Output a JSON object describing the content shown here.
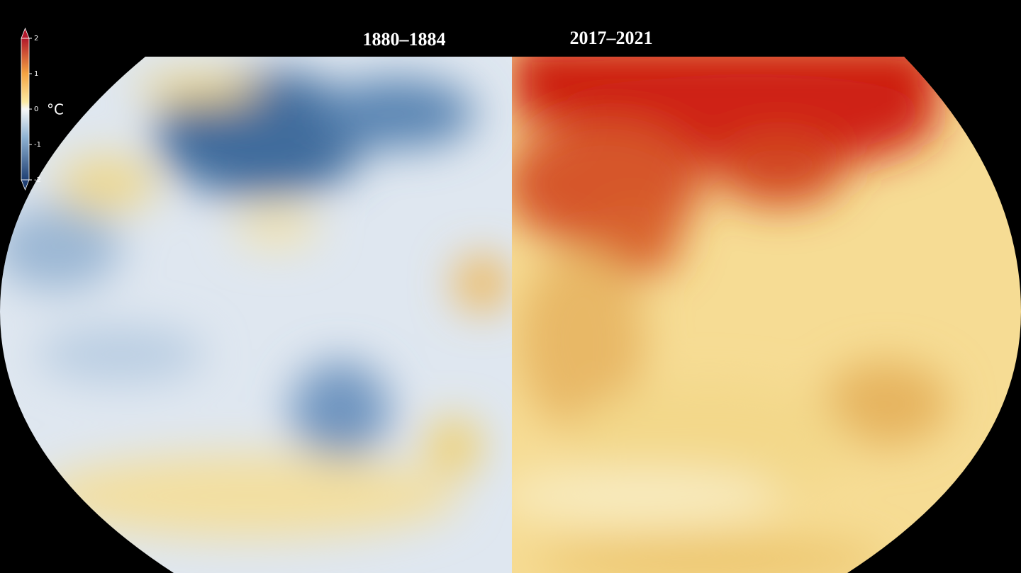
{
  "titles": [
    "1880–1884",
    "2017–2021"
  ],
  "legend": {
    "unit": "°C",
    "ticks": [
      2,
      1,
      0,
      -1,
      -2
    ]
  }
}
